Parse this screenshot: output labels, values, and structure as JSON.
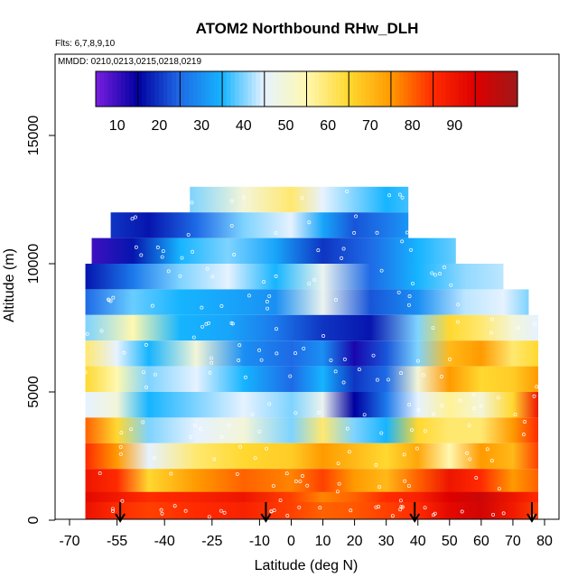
{
  "chart_data": {
    "type": "heatmap",
    "title": "ATOM2 Northbound RHw_DLH",
    "flights_note": "Flts: 6,7,8,9,10",
    "dates_note": "MMDD: 0210,0213,0215,0218,0219",
    "xlabel": "Latitude (deg N)",
    "ylabel": "Altitude (m)",
    "xlim": [
      -70,
      80
    ],
    "ylim": [
      0,
      17500
    ],
    "x_ticks": [
      -70,
      -55,
      -40,
      -25,
      -10,
      0,
      10,
      20,
      30,
      40,
      50,
      60,
      70,
      80
    ],
    "y_ticks": [
      0,
      5000,
      10000,
      15000
    ],
    "colorbar": {
      "min": 0,
      "max": 100,
      "tick_values": [
        10,
        20,
        30,
        40,
        50,
        60,
        70,
        80,
        90
      ],
      "colors": [
        "#7a1fe0",
        "#0000a0",
        "#1e6ae6",
        "#16b4ff",
        "#e6f2ff",
        "#fff8b0",
        "#ffd830",
        "#ff9a00",
        "#ff2a00",
        "#dd0000",
        "#a01818"
      ]
    },
    "profile_markers_lat": [
      -54,
      -8,
      39,
      76
    ],
    "rows": [
      {
        "alt": 12500,
        "xmin": -32,
        "xmax": 37,
        "lats": [
          -32,
          -15,
          0,
          10,
          20,
          30,
          37
        ],
        "rh": [
          35,
          45,
          55,
          40,
          35,
          30,
          32
        ]
      },
      {
        "alt": 11500,
        "xmin": -57,
        "xmax": 37,
        "lats": [
          -57,
          -45,
          -30,
          -15,
          0,
          10,
          20,
          30,
          37
        ],
        "rh": [
          15,
          12,
          20,
          35,
          40,
          28,
          18,
          22,
          26
        ]
      },
      {
        "alt": 10500,
        "xmin": -63,
        "xmax": 52,
        "lats": [
          -63,
          -50,
          -35,
          -20,
          -5,
          10,
          25,
          40,
          52
        ],
        "rh": [
          5,
          12,
          30,
          35,
          28,
          15,
          20,
          30,
          34
        ]
      },
      {
        "alt": 9500,
        "xmin": -65,
        "xmax": 67,
        "lats": [
          -65,
          -50,
          -35,
          -20,
          -5,
          10,
          25,
          40,
          55,
          67
        ],
        "rh": [
          12,
          22,
          35,
          40,
          30,
          42,
          20,
          30,
          36,
          38
        ]
      },
      {
        "alt": 8500,
        "xmin": -65,
        "xmax": 75,
        "lats": [
          -65,
          -50,
          -35,
          -20,
          -5,
          10,
          25,
          40,
          55,
          67,
          75
        ],
        "rh": [
          20,
          34,
          30,
          28,
          25,
          42,
          18,
          25,
          38,
          40,
          35
        ]
      },
      {
        "alt": 7500,
        "xmin": -65,
        "xmax": 78,
        "lats": [
          -65,
          -50,
          -35,
          -20,
          -5,
          10,
          25,
          40,
          50,
          60,
          70,
          78
        ],
        "rh": [
          35,
          50,
          30,
          28,
          22,
          15,
          12,
          35,
          60,
          55,
          45,
          40
        ]
      },
      {
        "alt": 6500,
        "xmin": -65,
        "xmax": 78,
        "lats": [
          -65,
          -55,
          -45,
          -30,
          -15,
          0,
          10,
          20,
          30,
          40,
          50,
          60,
          70,
          78
        ],
        "rh": [
          55,
          40,
          30,
          45,
          25,
          20,
          25,
          8,
          18,
          35,
          65,
          70,
          55,
          60
        ]
      },
      {
        "alt": 5500,
        "xmin": -65,
        "xmax": 78,
        "lats": [
          -65,
          -55,
          -45,
          -30,
          -15,
          0,
          10,
          20,
          30,
          40,
          50,
          60,
          70,
          78
        ],
        "rh": [
          60,
          50,
          35,
          40,
          30,
          20,
          30,
          15,
          20,
          45,
          70,
          60,
          62,
          70
        ]
      },
      {
        "alt": 4500,
        "xmin": -65,
        "xmax": 78,
        "lats": [
          -65,
          -55,
          -45,
          -30,
          -15,
          0,
          10,
          20,
          30,
          40,
          50,
          60,
          70,
          78
        ],
        "rh": [
          40,
          45,
          30,
          35,
          40,
          35,
          42,
          10,
          22,
          40,
          52,
          45,
          60,
          85
        ]
      },
      {
        "alt": 3500,
        "xmin": -65,
        "xmax": 78,
        "lats": [
          -65,
          -55,
          -45,
          -30,
          -15,
          0,
          10,
          20,
          30,
          40,
          50,
          60,
          70,
          78
        ],
        "rh": [
          75,
          60,
          35,
          40,
          45,
          35,
          55,
          35,
          30,
          60,
          55,
          55,
          70,
          80
        ]
      },
      {
        "alt": 2500,
        "xmin": -65,
        "xmax": 78,
        "lats": [
          -65,
          -55,
          -45,
          -30,
          -15,
          0,
          10,
          20,
          30,
          40,
          50,
          60,
          70,
          78
        ],
        "rh": [
          80,
          70,
          40,
          55,
          60,
          62,
          70,
          65,
          60,
          68,
          50,
          70,
          65,
          78
        ]
      },
      {
        "alt": 1500,
        "xmin": -65,
        "xmax": 78,
        "lats": [
          -65,
          -55,
          -45,
          -30,
          -15,
          0,
          10,
          20,
          30,
          40,
          50,
          60,
          70,
          78
        ],
        "rh": [
          85,
          80,
          60,
          70,
          75,
          72,
          78,
          70,
          65,
          75,
          85,
          80,
          70,
          75
        ]
      },
      {
        "alt": 600,
        "xmin": -65,
        "xmax": 78,
        "lats": [
          -65,
          -55,
          -45,
          -30,
          -15,
          0,
          10,
          20,
          30,
          40,
          50,
          60,
          70,
          78
        ],
        "rh": [
          88,
          84,
          80,
          82,
          85,
          78,
          72,
          75,
          80,
          82,
          90,
          93,
          85,
          80
        ]
      },
      {
        "alt": 200,
        "xmin": -65,
        "xmax": 78,
        "lats": [
          -65,
          -55,
          -45,
          -30,
          -15,
          0,
          10,
          20,
          30,
          40,
          50,
          60,
          70,
          78
        ],
        "rh": [
          86,
          80,
          78,
          80,
          82,
          78,
          75,
          76,
          78,
          80,
          88,
          92,
          84,
          78
        ]
      }
    ]
  }
}
